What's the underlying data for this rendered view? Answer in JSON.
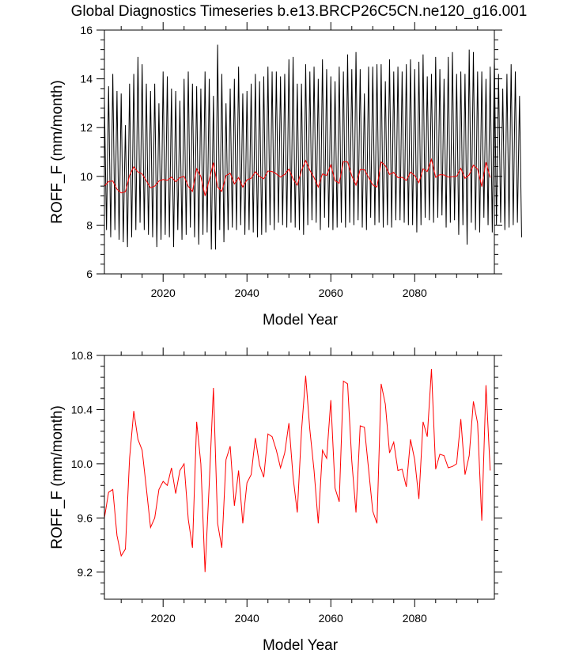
{
  "title": "Global Diagnostics Timeseries b.e13.BRCP26C5CN.ne120_g16.001",
  "colors": {
    "monthly": "#000000",
    "annual": "#ff0000",
    "axes": "#000000"
  },
  "chart_data": [
    {
      "type": "line",
      "xlabel": "Model Year",
      "ylabel": "ROFF_F (mm/month)",
      "xlim": [
        2006,
        2099
      ],
      "ylim": [
        6,
        16
      ],
      "xticks": [
        2020,
        2040,
        2060,
        2080
      ],
      "xtick_labels": [
        "2020",
        "2040",
        "2060",
        "2080"
      ],
      "yticks": [
        6,
        8,
        10,
        12,
        14,
        16
      ],
      "ytick_labels": [
        "6",
        "8",
        "10",
        "12",
        "14",
        "16"
      ],
      "series": [
        {
          "name": "monthly",
          "color": "#000000",
          "x_start": 2006,
          "x_step": 0.5,
          "values": [
            13.1,
            7.8,
            13.7,
            7.5,
            14.2,
            7.8,
            13.5,
            7.4,
            13.4,
            7.3,
            12.1,
            7.1,
            13.8,
            7.5,
            14.2,
            7.8,
            14.9,
            8.1,
            14.6,
            7.8,
            13.8,
            7.6,
            13.5,
            7.5,
            13.8,
            7.1,
            13.0,
            7.4,
            14.3,
            7.6,
            14.1,
            7.5,
            13.6,
            7.1,
            13.5,
            7.8,
            13.1,
            7.4,
            14.0,
            7.6,
            14.3,
            7.9,
            13.8,
            7.5,
            13.7,
            7.2,
            13.6,
            7.6,
            14.3,
            7.7,
            14.0,
            7.0,
            13.3,
            7.0,
            15.4,
            7.8,
            14.2,
            7.3,
            13.0,
            7.8,
            13.6,
            7.9,
            14.0,
            7.8,
            14.5,
            8.0,
            13.4,
            7.6,
            13.5,
            7.8,
            13.8,
            7.7,
            14.2,
            7.5,
            13.9,
            7.6,
            14.1,
            7.7,
            14.5,
            8.0,
            14.3,
            7.8,
            14.3,
            8.1,
            14.1,
            8.0,
            14.2,
            7.9,
            14.8,
            8.1,
            14.9,
            7.9,
            13.8,
            7.8,
            13.8,
            7.6,
            14.6,
            8.0,
            14.3,
            8.2,
            14.5,
            8.1,
            14.0,
            7.8,
            14.8,
            8.3,
            14.4,
            7.9,
            14.1,
            7.8,
            13.9,
            7.9,
            14.5,
            8.1,
            14.3,
            7.9,
            15.0,
            8.1,
            14.4,
            8.0,
            15.1,
            8.2,
            14.4,
            7.9,
            13.4,
            7.8,
            14.5,
            8.3,
            14.5,
            8.0,
            14.6,
            8.1,
            14.6,
            7.9,
            13.9,
            8.0,
            14.8,
            7.9,
            14.3,
            8.2,
            14.5,
            8.2,
            14.3,
            8.1,
            14.6,
            8.0,
            14.8,
            8.0,
            14.4,
            7.7,
            14.7,
            8.0,
            15.0,
            8.3,
            14.1,
            8.2,
            14.2,
            8.1,
            14.9,
            8.3,
            14.4,
            8.4,
            14.0,
            7.9,
            14.9,
            8.1,
            15.1,
            8.2,
            14.2,
            7.6,
            14.3,
            8.0,
            14.2,
            7.2,
            15.2,
            8.1,
            15.1,
            7.8,
            14.3,
            7.7,
            14.3,
            8.3,
            14.0,
            8.0,
            14.5,
            7.7,
            14.9,
            8.0,
            14.2,
            8.1,
            13.6,
            7.8,
            14.2,
            7.9,
            14.6,
            8.0,
            14.3,
            8.1,
            13.3,
            7.5
          ]
        },
        {
          "name": "annual mean",
          "color": "#ff0000",
          "x_start": 2006,
          "x_step": 1,
          "values": [
            9.6,
            9.79,
            9.81,
            9.47,
            9.32,
            9.37,
            10.04,
            10.39,
            10.18,
            10.1,
            9.82,
            9.53,
            9.6,
            9.81,
            9.87,
            9.84,
            9.97,
            9.78,
            9.95,
            10.0,
            9.59,
            9.38,
            10.31,
            10.0,
            9.2,
            9.85,
            10.56,
            9.56,
            9.38,
            10.03,
            10.13,
            9.69,
            9.95,
            9.56,
            9.86,
            9.92,
            10.19,
            9.99,
            9.9,
            10.22,
            10.2,
            10.1,
            9.97,
            10.08,
            10.3,
            9.9,
            9.64,
            10.24,
            10.65,
            10.25,
            9.95,
            9.56,
            10.1,
            10.04,
            10.47,
            9.82,
            9.72,
            10.61,
            10.59,
            10.02,
            9.64,
            10.28,
            10.27,
            9.96,
            9.65,
            9.56,
            10.59,
            10.44,
            10.08,
            10.16,
            9.95,
            9.96,
            9.83,
            10.18,
            10.03,
            9.74,
            10.31,
            10.2,
            10.7,
            9.96,
            10.07,
            10.06,
            9.97,
            9.98,
            10.0,
            10.33,
            9.92,
            10.06,
            10.46,
            10.3,
            9.58,
            10.58,
            9.95
          ]
        }
      ]
    },
    {
      "type": "line",
      "xlabel": "Model Year",
      "ylabel": "ROFF_F (mm/month)",
      "xlim": [
        2006,
        2099
      ],
      "ylim": [
        9.0,
        10.8
      ],
      "xticks": [
        2020,
        2040,
        2060,
        2080
      ],
      "xtick_labels": [
        "2020",
        "2040",
        "2060",
        "2080"
      ],
      "yticks": [
        9.2,
        9.6,
        10.0,
        10.4,
        10.8
      ],
      "ytick_labels": [
        "9.2",
        "9.6",
        "10.0",
        "10.4",
        "10.8"
      ],
      "series": [
        {
          "name": "annual mean",
          "color": "#ff0000",
          "x_start": 2006,
          "x_step": 1,
          "values": [
            9.6,
            9.79,
            9.81,
            9.47,
            9.32,
            9.37,
            10.04,
            10.39,
            10.18,
            10.1,
            9.82,
            9.53,
            9.6,
            9.81,
            9.87,
            9.84,
            9.97,
            9.78,
            9.95,
            10.0,
            9.59,
            9.38,
            10.31,
            10.0,
            9.2,
            9.85,
            10.56,
            9.56,
            9.38,
            10.03,
            10.13,
            9.69,
            9.95,
            9.56,
            9.86,
            9.92,
            10.19,
            9.99,
            9.9,
            10.22,
            10.2,
            10.1,
            9.97,
            10.08,
            10.3,
            9.9,
            9.64,
            10.24,
            10.65,
            10.25,
            9.95,
            9.56,
            10.1,
            10.04,
            10.47,
            9.82,
            9.72,
            10.61,
            10.59,
            10.02,
            9.64,
            10.28,
            10.27,
            9.96,
            9.65,
            9.56,
            10.59,
            10.44,
            10.08,
            10.16,
            9.95,
            9.96,
            9.83,
            10.18,
            10.03,
            9.74,
            10.31,
            10.2,
            10.7,
            9.96,
            10.07,
            10.06,
            9.97,
            9.98,
            10.0,
            10.33,
            9.92,
            10.06,
            10.46,
            10.3,
            9.58,
            10.58,
            9.95
          ]
        }
      ]
    }
  ]
}
